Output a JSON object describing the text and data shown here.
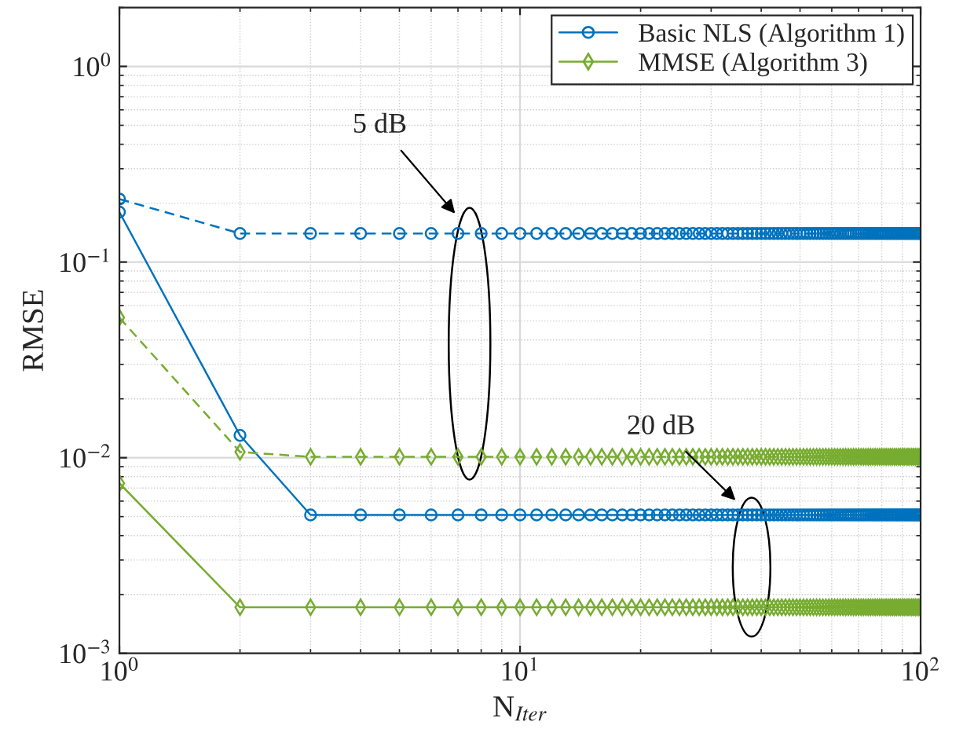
{
  "chart_data": {
    "type": "line",
    "xlabel": "N$_{Iter}$",
    "ylabel": "RMSE",
    "log": "xy",
    "grid": true,
    "legend": "top right",
    "xlim": [
      1,
      100
    ],
    "ylim": [
      0.001,
      2
    ],
    "xticks": [
      {
        "value": 1,
        "label": "10$^{0}$"
      },
      {
        "value": 10,
        "label": "10$^{1}$"
      },
      {
        "value": 100,
        "label": "10$^{2}$"
      }
    ],
    "yticks": [
      {
        "value": 0.001,
        "label": "10$^{−3}$"
      },
      {
        "value": 0.01,
        "label": "10$^{−2}$"
      },
      {
        "value": 0.1,
        "label": "10$^{−1}$"
      },
      {
        "value": 1,
        "label": "10$^{0}$"
      }
    ],
    "x": [
      1,
      2,
      3,
      4,
      5,
      6,
      7,
      8,
      9,
      10,
      11,
      12,
      13,
      14,
      15,
      16,
      17,
      18,
      19,
      20,
      21,
      22,
      23,
      24,
      25,
      26,
      27,
      28,
      29,
      30,
      31,
      32,
      33,
      34,
      35,
      36,
      37,
      38,
      39,
      40,
      41,
      42,
      43,
      44,
      45,
      46,
      47,
      48,
      49,
      50,
      51,
      52,
      53,
      54,
      55,
      56,
      57,
      58,
      59,
      60,
      61,
      62,
      63,
      64,
      65,
      66,
      67,
      68,
      69,
      70,
      71,
      72,
      73,
      74,
      75,
      76,
      77,
      78,
      79,
      80,
      81,
      82,
      83,
      84,
      85,
      86,
      87,
      88,
      89,
      90,
      91,
      92,
      93,
      94,
      95,
      96,
      97,
      98,
      99,
      100
    ],
    "series": [
      {
        "name": "Basic NLS (Algorithm 1)",
        "color": "#0072bd",
        "marker": "circle",
        "line_style": "solid",
        "values": [
          0.18,
          0.013,
          0.0051,
          0.0051,
          0.0051,
          0.0051,
          0.0051,
          0.0051,
          0.0051,
          0.0051,
          0.0051,
          0.0051,
          0.0051,
          0.0051,
          0.0051,
          0.0051,
          0.0051,
          0.0051,
          0.0051,
          0.0051,
          0.0051,
          0.0051,
          0.0051,
          0.0051,
          0.0051,
          0.0051,
          0.0051,
          0.0051,
          0.0051,
          0.0051,
          0.0051,
          0.0051,
          0.0051,
          0.0051,
          0.0051,
          0.0051,
          0.0051,
          0.0051,
          0.0051,
          0.0051,
          0.0051,
          0.0051,
          0.0051,
          0.0051,
          0.0051,
          0.0051,
          0.0051,
          0.0051,
          0.0051,
          0.0051,
          0.0051,
          0.0051,
          0.0051,
          0.0051,
          0.0051,
          0.0051,
          0.0051,
          0.0051,
          0.0051,
          0.0051,
          0.0051,
          0.0051,
          0.0051,
          0.0051,
          0.0051,
          0.0051,
          0.0051,
          0.0051,
          0.0051,
          0.0051,
          0.0051,
          0.0051,
          0.0051,
          0.0051,
          0.0051,
          0.0051,
          0.0051,
          0.0051,
          0.0051,
          0.0051,
          0.0051,
          0.0051,
          0.0051,
          0.0051,
          0.0051,
          0.0051,
          0.0051,
          0.0051,
          0.0051,
          0.0051,
          0.0051,
          0.0051,
          0.0051,
          0.0051,
          0.0051,
          0.0051,
          0.0051,
          0.0051,
          0.0051,
          0.0051
        ]
      },
      {
        "name": "MMSE (Algorithm 3)",
        "color": "#77ac30",
        "marker": "diamond",
        "line_style": "solid",
        "values": [
          0.0074,
          0.00172,
          0.00172,
          0.00172,
          0.00172,
          0.00172,
          0.00172,
          0.00172,
          0.00172,
          0.00172,
          0.00172,
          0.00172,
          0.00172,
          0.00172,
          0.00172,
          0.00172,
          0.00172,
          0.00172,
          0.00172,
          0.00172,
          0.00172,
          0.00172,
          0.00172,
          0.00172,
          0.00172,
          0.00172,
          0.00172,
          0.00172,
          0.00172,
          0.00172,
          0.00172,
          0.00172,
          0.00172,
          0.00172,
          0.00172,
          0.00172,
          0.00172,
          0.00172,
          0.00172,
          0.00172,
          0.00172,
          0.00172,
          0.00172,
          0.00172,
          0.00172,
          0.00172,
          0.00172,
          0.00172,
          0.00172,
          0.00172,
          0.00172,
          0.00172,
          0.00172,
          0.00172,
          0.00172,
          0.00172,
          0.00172,
          0.00172,
          0.00172,
          0.00172,
          0.00172,
          0.00172,
          0.00172,
          0.00172,
          0.00172,
          0.00172,
          0.00172,
          0.00172,
          0.00172,
          0.00172,
          0.00172,
          0.00172,
          0.00172,
          0.00172,
          0.00172,
          0.00172,
          0.00172,
          0.00172,
          0.00172,
          0.00172,
          0.00172,
          0.00172,
          0.00172,
          0.00172,
          0.00172,
          0.00172,
          0.00172,
          0.00172,
          0.00172,
          0.00172,
          0.00172,
          0.00172,
          0.00172,
          0.00172,
          0.00172,
          0.00172,
          0.00172,
          0.00172,
          0.00172,
          0.00172
        ]
      },
      {
        "color": "#0072bd",
        "marker": "circle",
        "line_style": "dashed",
        "values": [
          0.21,
          0.14,
          0.14,
          0.14,
          0.14,
          0.14,
          0.14,
          0.14,
          0.14,
          0.14,
          0.14,
          0.14,
          0.14,
          0.14,
          0.14,
          0.14,
          0.14,
          0.14,
          0.14,
          0.14,
          0.14,
          0.14,
          0.14,
          0.14,
          0.14,
          0.14,
          0.14,
          0.14,
          0.14,
          0.14,
          0.14,
          0.14,
          0.14,
          0.14,
          0.14,
          0.14,
          0.14,
          0.14,
          0.14,
          0.14,
          0.14,
          0.14,
          0.14,
          0.14,
          0.14,
          0.14,
          0.14,
          0.14,
          0.14,
          0.14,
          0.14,
          0.14,
          0.14,
          0.14,
          0.14,
          0.14,
          0.14,
          0.14,
          0.14,
          0.14,
          0.14,
          0.14,
          0.14,
          0.14,
          0.14,
          0.14,
          0.14,
          0.14,
          0.14,
          0.14,
          0.14,
          0.14,
          0.14,
          0.14,
          0.14,
          0.14,
          0.14,
          0.14,
          0.14,
          0.14,
          0.14,
          0.14,
          0.14,
          0.14,
          0.14,
          0.14,
          0.14,
          0.14,
          0.14,
          0.14,
          0.14,
          0.14,
          0.14,
          0.14,
          0.14,
          0.14,
          0.14,
          0.14,
          0.14,
          0.14
        ]
      },
      {
        "color": "#77ac30",
        "marker": "diamond",
        "line_style": "dashed",
        "values": [
          0.052,
          0.0107,
          0.0101,
          0.0101,
          0.0101,
          0.0101,
          0.0101,
          0.0101,
          0.0101,
          0.0101,
          0.0101,
          0.0101,
          0.0101,
          0.0101,
          0.0101,
          0.0101,
          0.0101,
          0.0101,
          0.0101,
          0.0101,
          0.0101,
          0.0101,
          0.0101,
          0.0101,
          0.0101,
          0.0101,
          0.0101,
          0.0101,
          0.0101,
          0.0101,
          0.0101,
          0.0101,
          0.0101,
          0.0101,
          0.0101,
          0.0101,
          0.0101,
          0.0101,
          0.0101,
          0.0101,
          0.0101,
          0.0101,
          0.0101,
          0.0101,
          0.0101,
          0.0101,
          0.0101,
          0.0101,
          0.0101,
          0.0101,
          0.0101,
          0.0101,
          0.0101,
          0.0101,
          0.0101,
          0.0101,
          0.0101,
          0.0101,
          0.0101,
          0.0101,
          0.0101,
          0.0101,
          0.0101,
          0.0101,
          0.0101,
          0.0101,
          0.0101,
          0.0101,
          0.0101,
          0.0101,
          0.0101,
          0.0101,
          0.0101,
          0.0101,
          0.0101,
          0.0101,
          0.0101,
          0.0101,
          0.0101,
          0.0101,
          0.0101,
          0.0101,
          0.0101,
          0.0101,
          0.0101,
          0.0101,
          0.0101,
          0.0101,
          0.0101,
          0.0101,
          0.0101,
          0.0101,
          0.0101,
          0.0101,
          0.0101,
          0.0101,
          0.0101,
          0.0101,
          0.0101,
          0.0101
        ]
      }
    ],
    "annotations": [
      "5 dB",
      "20 dB"
    ]
  }
}
